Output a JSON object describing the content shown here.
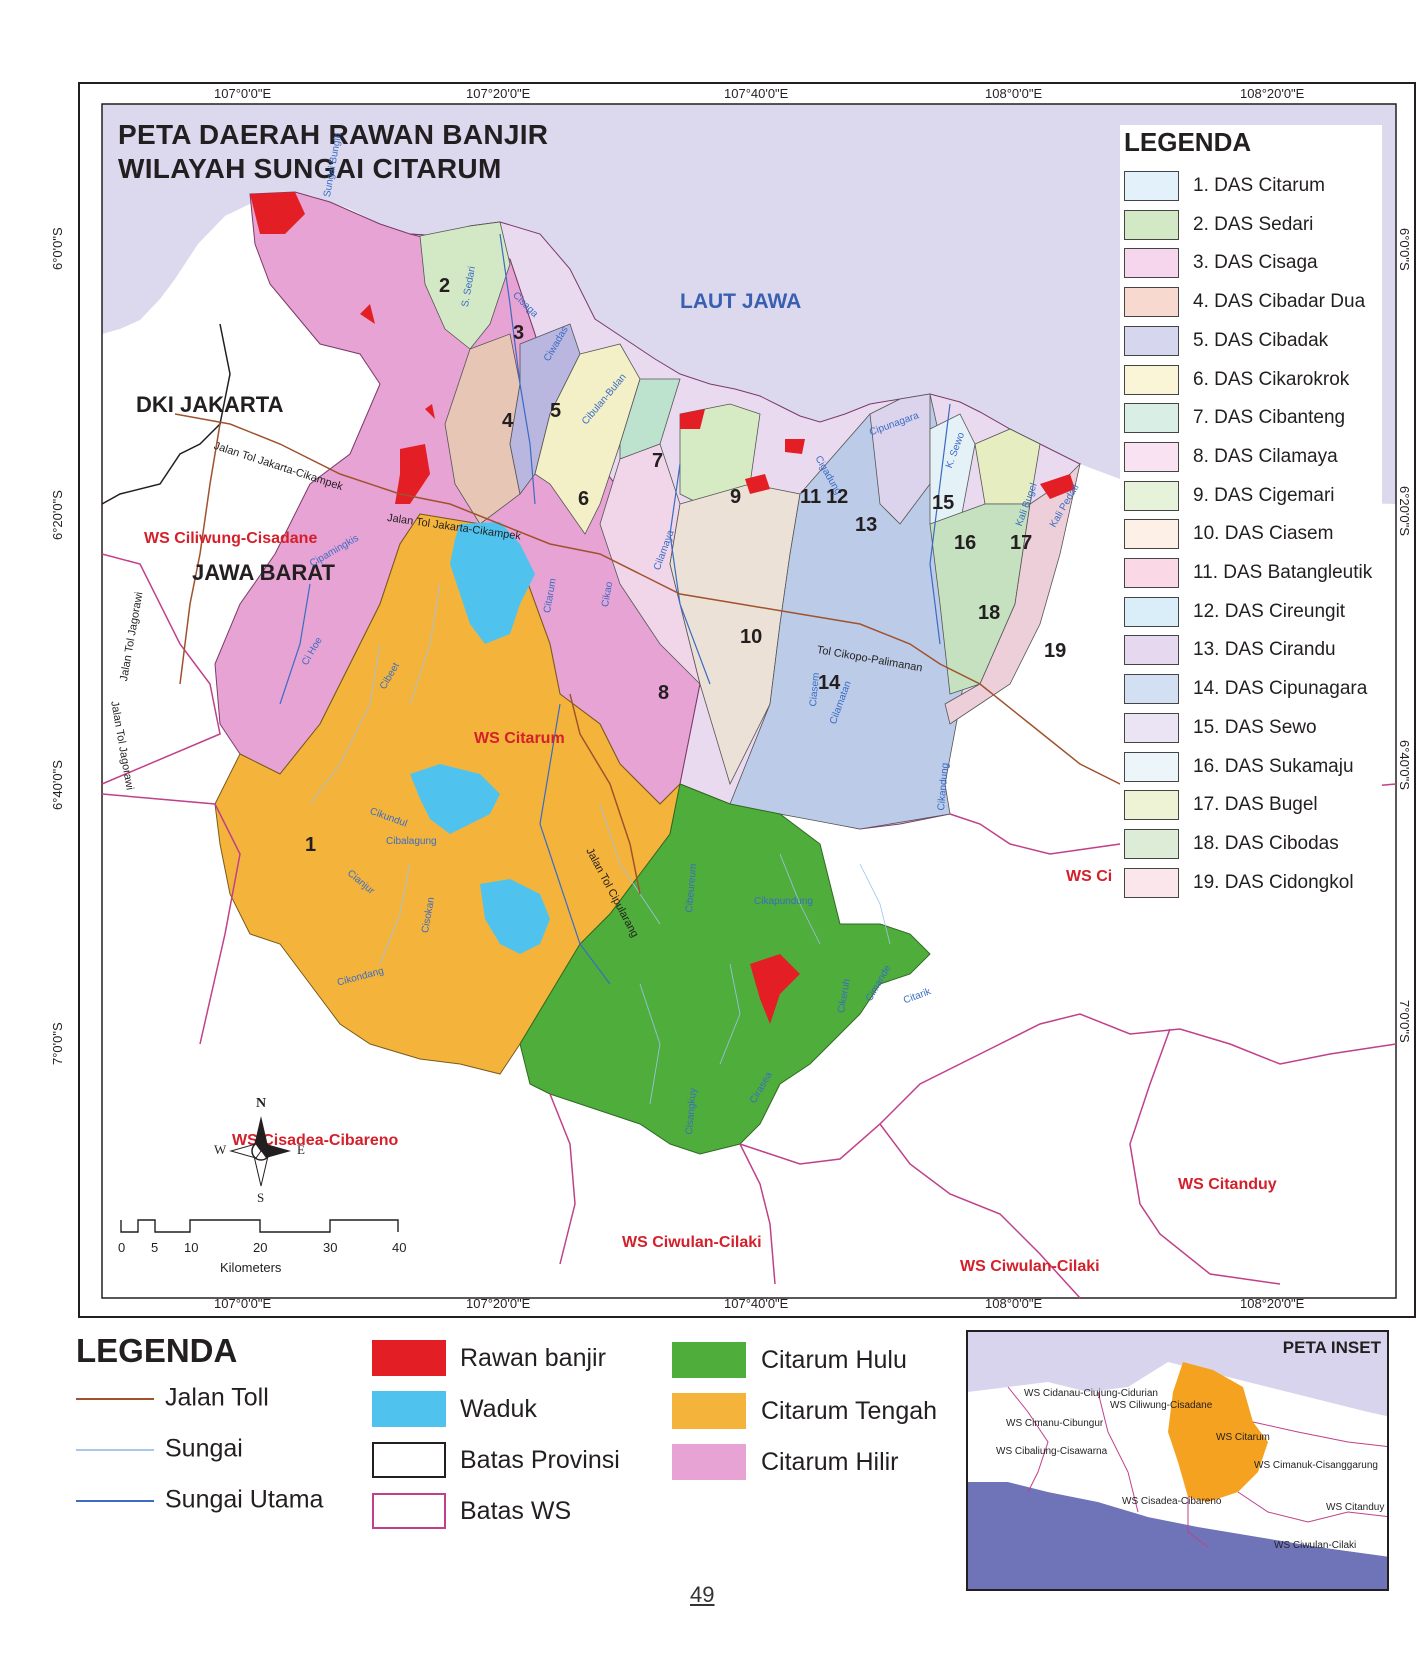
{
  "map": {
    "title_line1": "PETA DAERAH RAWAN BANJIR",
    "title_line2": "WILAYAH SUNGAI CITARUM",
    "top_coords": [
      "107°0'0\"E",
      "107°20'0\"E",
      "107°40'0\"E",
      "108°0'0\"E",
      "108°20'0\"E"
    ],
    "bottom_coords": [
      "107°0'0\"E",
      "107°20'0\"E",
      "107°40'0\"E",
      "108°0'0\"E",
      "108°20'0\"E"
    ],
    "left_coords": [
      "6°0'0\"S",
      "6°20'0\"S",
      "6°40'0\"S",
      "7°0'0\"S"
    ],
    "right_coords": [
      "6°0'0\"S",
      "6°20'0\"S",
      "6°40'0\"S",
      "7°0'0\"S"
    ],
    "sea_label": "LAUT JAWA",
    "region_labels": {
      "dki": "DKI JAKARTA",
      "jabar": "JAWA BARAT"
    },
    "ws_labels": {
      "ciliwung": "WS Ciliwung-Cisadane",
      "citarum": "WS Citarum",
      "cisadea": "WS Cisadea-Cibareno",
      "ciwulan1": "WS Ciwulan-Cilaki",
      "ciwulan2": "WS Ciwulan-Cilaki",
      "citanduy": "WS Citanduy",
      "cimanuk_partial": "WS Ci"
    },
    "road_labels": {
      "toll1": "Jalan Tol Jakarta-Cikampek",
      "toll2": "Jalan Tol Jakarta-Cikampek",
      "jagorawi1": "Jalan Tol Jagorawi",
      "jagorawi2": "Jalan Tol Jagorawi",
      "cipularang": "Jalan Tol Cipularang",
      "cikopo": "Tol Cikopo-Palimanan"
    },
    "river_labels": [
      "Sungai Bungin",
      "S. Sedari",
      "Cisaga",
      "Ciwadas",
      "Cibulan-Bulan",
      "Cilamaya",
      "Cipunagara",
      "Cigadung",
      "K. Sewo",
      "Kali Bugel",
      "Kali Pedati",
      "Cipamingkis",
      "Ci Hoe",
      "Citarum",
      "Cibeet",
      "Cikao",
      "Ciasem",
      "Cilamatan",
      "Cikandung",
      "Cikundul",
      "Cibalagung",
      "Cianjur",
      "Cisokan",
      "Cikondang",
      "Cibeureum",
      "Cikapundung",
      "Citarik",
      "Cimande",
      "Cisangkuy",
      "Cirasea",
      "Cikeruh"
    ],
    "das_numbers": [
      "1",
      "2",
      "3",
      "4",
      "5",
      "6",
      "7",
      "8",
      "9",
      "10",
      "11",
      "12",
      "13",
      "14",
      "15",
      "16",
      "17",
      "18",
      "19"
    ],
    "north_arrow": {
      "n": "N",
      "s": "S",
      "e": "E",
      "w": "W"
    },
    "scale": {
      "ticks": [
        "0",
        "5",
        "10",
        "20",
        "30",
        "40"
      ],
      "unit": "Kilometers"
    }
  },
  "das_legend": {
    "title": "LEGENDA",
    "items": [
      {
        "label": "1. DAS Citarum",
        "color": "#e3f1fb"
      },
      {
        "label": "2. DAS Sedari",
        "color": "#d3e9c6"
      },
      {
        "label": "3. DAS Cisaga",
        "color": "#f6d6ec"
      },
      {
        "label": "4. DAS Cibadar Dua",
        "color": "#f8d9cf"
      },
      {
        "label": "5. DAS Cibadak",
        "color": "#d6d6ef"
      },
      {
        "label": "6. DAS Cikarokrok",
        "color": "#faf5d6"
      },
      {
        "label": "7. DAS Cibanteng",
        "color": "#d9efe5"
      },
      {
        "label": "8. DAS Cilamaya",
        "color": "#f9e3f3"
      },
      {
        "label": "9. DAS Cigemari",
        "color": "#e6f2da"
      },
      {
        "label": "10. DAS Ciasem",
        "color": "#fdf0e6"
      },
      {
        "label": "11. DAS Batangleutik",
        "color": "#fbd8e6"
      },
      {
        "label": "12. DAS Cireungit",
        "color": "#d9eef9"
      },
      {
        "label": "13. DAS Cirandu",
        "color": "#e6d9ef"
      },
      {
        "label": "14. DAS Cipunagara",
        "color": "#d3dff2"
      },
      {
        "label": "15. DAS Sewo",
        "color": "#ebe4f4"
      },
      {
        "label": "16. DAS Sukamaju",
        "color": "#ecf5f9"
      },
      {
        "label": "17. DAS Bugel",
        "color": "#eef3d6"
      },
      {
        "label": "18. DAS Cibodas",
        "color": "#dcecd6"
      },
      {
        "label": "19. DAS Cidongkol",
        "color": "#fbe6ec"
      }
    ]
  },
  "main_legend": {
    "title": "LEGENDA",
    "lines": [
      {
        "label": "Jalan Toll",
        "color": "#a0522d"
      },
      {
        "label": "Sungai",
        "color": "#aac8ee"
      },
      {
        "label": "Sungai Utama",
        "color": "#3a6cc4"
      }
    ],
    "boxes": [
      {
        "label": "Rawan banjir",
        "fill": "#e31e24",
        "stroke": "#e31e24"
      },
      {
        "label": "Waduk",
        "fill": "#4fc3ee",
        "stroke": "#4fc3ee"
      },
      {
        "label": "Batas Provinsi",
        "fill": "#ffffff",
        "stroke": "#231f20"
      },
      {
        "label": "Batas WS",
        "fill": "#ffffff",
        "stroke": "#c0408a"
      },
      {
        "label": "Citarum Hulu",
        "fill": "#4fae3b",
        "stroke": "#4fae3b"
      },
      {
        "label": "Citarum Tengah",
        "fill": "#f4b43c",
        "stroke": "#f4b43c"
      },
      {
        "label": "Citarum Hilir",
        "fill": "#e7a3d3",
        "stroke": "#e7a3d3"
      }
    ]
  },
  "inset": {
    "title": "PETA INSET",
    "labels": [
      "WS Cidanau-Ciujung-Cidurian",
      "WS Ciliwung-Cisadane",
      "WS Cimanu-Cibungur",
      "WS Cibaliung-Cisawarna",
      "WS Citarum",
      "WS Cimanuk-Cisanggarung",
      "WS Cisadea-Cibareno",
      "WS Citanduy",
      "WS Ciwulan-Cilaki"
    ]
  },
  "page_number": "49"
}
